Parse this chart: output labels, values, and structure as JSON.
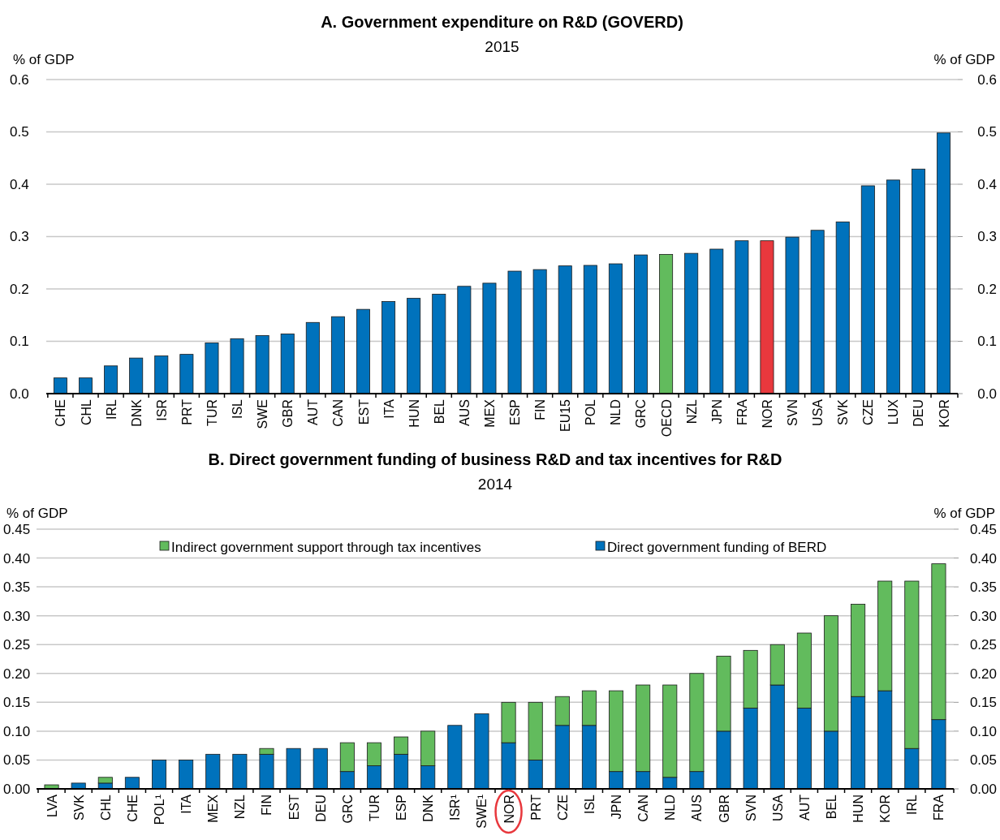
{
  "chart_data": [
    {
      "type": "bar",
      "title": "A. Government expenditure on R&D (GOVERD)",
      "subtitle": "2015",
      "ylabel": "% of GDP",
      "y2label": "% of GDP",
      "categories": [
        "CHE",
        "CHL",
        "IRL",
        "DNK",
        "ISR",
        "PRT",
        "TUR",
        "ISL",
        "SWE",
        "GBR",
        "AUT",
        "CAN",
        "EST",
        "ITA",
        "HUN",
        "BEL",
        "AUS",
        "MEX",
        "ESP",
        "FIN",
        "EU15",
        "POL",
        "NLD",
        "GRC",
        "OECD",
        "NZL",
        "JPN",
        "FRA",
        "NOR",
        "SVN",
        "USA",
        "SVK",
        "CZE",
        "LUX",
        "DEU",
        "KOR"
      ],
      "values": [
        0.03,
        0.03,
        0.053,
        0.068,
        0.072,
        0.075,
        0.097,
        0.105,
        0.111,
        0.114,
        0.136,
        0.147,
        0.161,
        0.176,
        0.182,
        0.19,
        0.205,
        0.211,
        0.234,
        0.237,
        0.244,
        0.245,
        0.248,
        0.265,
        0.266,
        0.268,
        0.276,
        0.292,
        0.292,
        0.299,
        0.312,
        0.328,
        0.397,
        0.408,
        0.429,
        0.498
      ],
      "colors": [
        "#0072bc",
        "#0072bc",
        "#0072bc",
        "#0072bc",
        "#0072bc",
        "#0072bc",
        "#0072bc",
        "#0072bc",
        "#0072bc",
        "#0072bc",
        "#0072bc",
        "#0072bc",
        "#0072bc",
        "#0072bc",
        "#0072bc",
        "#0072bc",
        "#0072bc",
        "#0072bc",
        "#0072bc",
        "#0072bc",
        "#0072bc",
        "#0072bc",
        "#0072bc",
        "#0072bc",
        "#62bb5d",
        "#0072bc",
        "#0072bc",
        "#0072bc",
        "#e8383d",
        "#0072bc",
        "#0072bc",
        "#0072bc",
        "#0072bc",
        "#0072bc",
        "#0072bc",
        "#0072bc"
      ],
      "ylim": [
        0,
        0.6
      ],
      "yticks": [
        {
          "value": 0,
          "label": "0.0"
        },
        0.1,
        0.2,
        0.3,
        0.4,
        0.5,
        0.6
      ],
      "y2lim": [
        0,
        0.6
      ],
      "y2ticks": [
        {
          "value": 0,
          "label": "0.0"
        },
        0.1,
        0.2,
        0.3,
        0.4,
        0.5,
        0.6
      ],
      "grid": "y",
      "legend": false
    },
    {
      "type": "bar",
      "title": "B. Direct government funding of business R&D and tax incentives for R&D",
      "subtitle": "2014",
      "ylabel": "% of GDP",
      "y2label": "% of GDP",
      "categories": [
        "LVA",
        "SVK",
        "CHL",
        "CHE",
        "POL¹",
        "ITA",
        "MEX",
        "NZL",
        "FIN",
        "EST",
        "DEU",
        "GRC",
        "TUR",
        "ESP",
        "DNK",
        "ISR¹",
        "SWE¹",
        "NOR",
        "PRT",
        "CZE",
        "ISL",
        "JPN",
        "CAN",
        "NLD",
        "AUS",
        "GBR",
        "SVN",
        "USA",
        "AUT",
        "BEL",
        "HUN",
        "KOR",
        "IRL",
        "FRA"
      ],
      "stacked": true,
      "series": [
        {
          "name": "Direct government funding of BERD",
          "color": "#0072bc",
          "values": [
            null,
            0.01,
            0.01,
            0.02,
            0.05,
            0.05,
            0.06,
            0.06,
            0.06,
            0.07,
            0.07,
            0.03,
            0.04,
            0.06,
            0.04,
            0.11,
            0.13,
            0.08,
            0.05,
            0.11,
            0.11,
            0.03,
            0.03,
            0.02,
            0.03,
            0.1,
            0.14,
            0.18,
            0.14,
            0.1,
            0.16,
            0.17,
            0.07,
            0.12
          ]
        },
        {
          "name": "Indirect government support through tax incentives",
          "color": "#62bb5d",
          "values": [
            0.007,
            0,
            0.01,
            0,
            0,
            0,
            0,
            0,
            0.01,
            0,
            0,
            0.05,
            0.04,
            0.03,
            0.06,
            0,
            0,
            0.07,
            0.1,
            0.05,
            0.06,
            0.14,
            0.15,
            0.16,
            0.17,
            0.13,
            0.1,
            0.07,
            0.13,
            0.2,
            0.16,
            0.19,
            0.29,
            0.27
          ]
        }
      ],
      "ylim": [
        0,
        0.45
      ],
      "yticks": [
        {
          "value": 0,
          "label": "0.00"
        },
        0.05,
        {
          "value": 0.1,
          "label": "0.10"
        },
        0.15,
        {
          "value": 0.2,
          "label": "0.20"
        },
        0.25,
        {
          "value": 0.3,
          "label": "0.30"
        },
        0.35,
        {
          "value": 0.4,
          "label": "0.40"
        },
        0.45
      ],
      "y2lim": [
        0,
        0.45
      ],
      "y2ticks": [
        {
          "value": 0,
          "label": "0.00"
        },
        0.05,
        {
          "value": 0.1,
          "label": "0.10"
        },
        0.15,
        {
          "value": 0.2,
          "label": "0.20"
        },
        0.25,
        {
          "value": 0.3,
          "label": "0.30"
        },
        0.35,
        {
          "value": 0.4,
          "label": "0.40"
        },
        0.45
      ],
      "grid": "y",
      "legend": "top"
    }
  ]
}
